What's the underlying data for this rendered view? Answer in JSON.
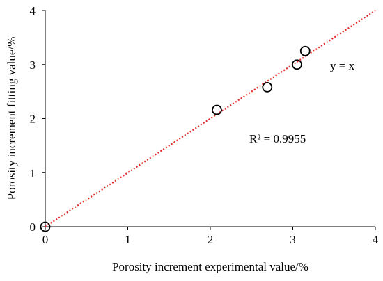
{
  "chart_data": {
    "type": "scatter",
    "title": "",
    "xlabel": "Porosity increment experimental value/%",
    "ylabel": "Porosity increment fitting value/%",
    "xlim": [
      0,
      4
    ],
    "ylim": [
      0,
      4
    ],
    "x_ticks": [
      "0",
      "1",
      "2",
      "3",
      "4"
    ],
    "y_ticks": [
      "0",
      "1",
      "2",
      "3",
      "4"
    ],
    "grid": false,
    "legend": "none",
    "series": [
      {
        "marker": "open-circle",
        "color": "#000000",
        "points": [
          {
            "x": 0,
            "y": 0
          },
          {
            "x": 2.08,
            "y": 2.16
          },
          {
            "x": 2.69,
            "y": 2.58
          },
          {
            "x": 3.05,
            "y": 3.0
          },
          {
            "x": 3.15,
            "y": 3.25
          }
        ]
      }
    ],
    "reference_line": {
      "from": [
        0,
        0
      ],
      "to": [
        4,
        4
      ],
      "style": "dotted",
      "color": "#e32b2b"
    },
    "annotations": {
      "equation": "y = x",
      "r_squared": "R² = 0.9955"
    }
  }
}
